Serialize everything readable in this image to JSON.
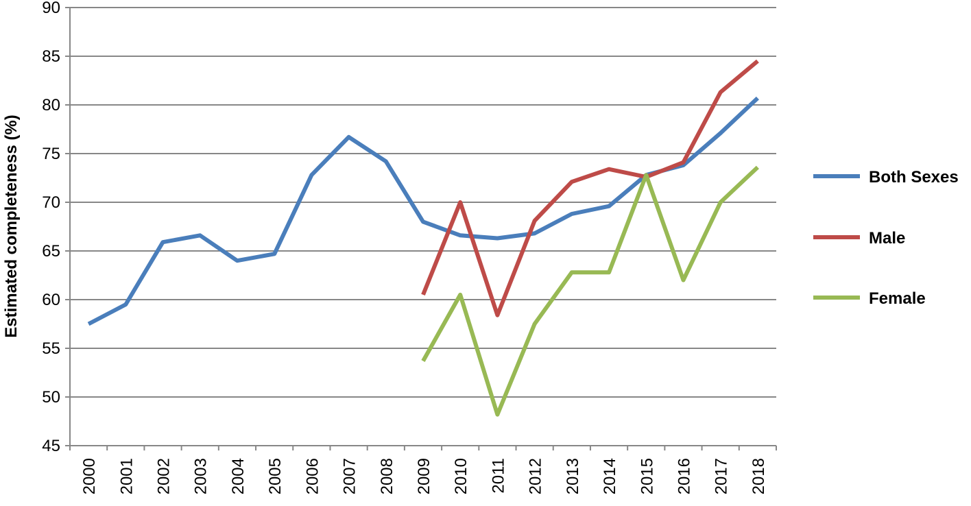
{
  "chart_data": {
    "type": "line",
    "title": "",
    "xlabel": "",
    "ylabel": "Estimated completeness (%)",
    "ylim": [
      45,
      90
    ],
    "yticks": [
      45,
      50,
      55,
      60,
      65,
      70,
      75,
      80,
      85,
      90
    ],
    "grid": "horizontal",
    "legend_position": "right",
    "categories": [
      "2000",
      "2001",
      "2002",
      "2003",
      "2004",
      "2005",
      "2006",
      "2007",
      "2008",
      "2009",
      "2010",
      "2011",
      "2012",
      "2013",
      "2014",
      "2015",
      "2016",
      "2017",
      "2018"
    ],
    "series": [
      {
        "name": "Both Sexes",
        "color": "#4a7ebb",
        "values": [
          57.5,
          59.5,
          65.9,
          66.6,
          64.0,
          64.7,
          72.8,
          76.7,
          74.2,
          68.0,
          66.6,
          66.3,
          66.8,
          68.8,
          69.6,
          72.8,
          73.8,
          77.1,
          80.7
        ]
      },
      {
        "name": "Male",
        "color": "#be4b48",
        "values": [
          null,
          null,
          null,
          null,
          null,
          null,
          null,
          null,
          null,
          60.5,
          70.0,
          58.4,
          68.1,
          72.1,
          73.4,
          72.6,
          74.1,
          81.3,
          84.5
        ]
      },
      {
        "name": "Female",
        "color": "#98b954",
        "values": [
          null,
          null,
          null,
          null,
          null,
          null,
          null,
          null,
          null,
          53.7,
          60.5,
          48.2,
          57.5,
          62.8,
          62.8,
          72.8,
          62.0,
          70.0,
          73.6
        ]
      }
    ]
  }
}
